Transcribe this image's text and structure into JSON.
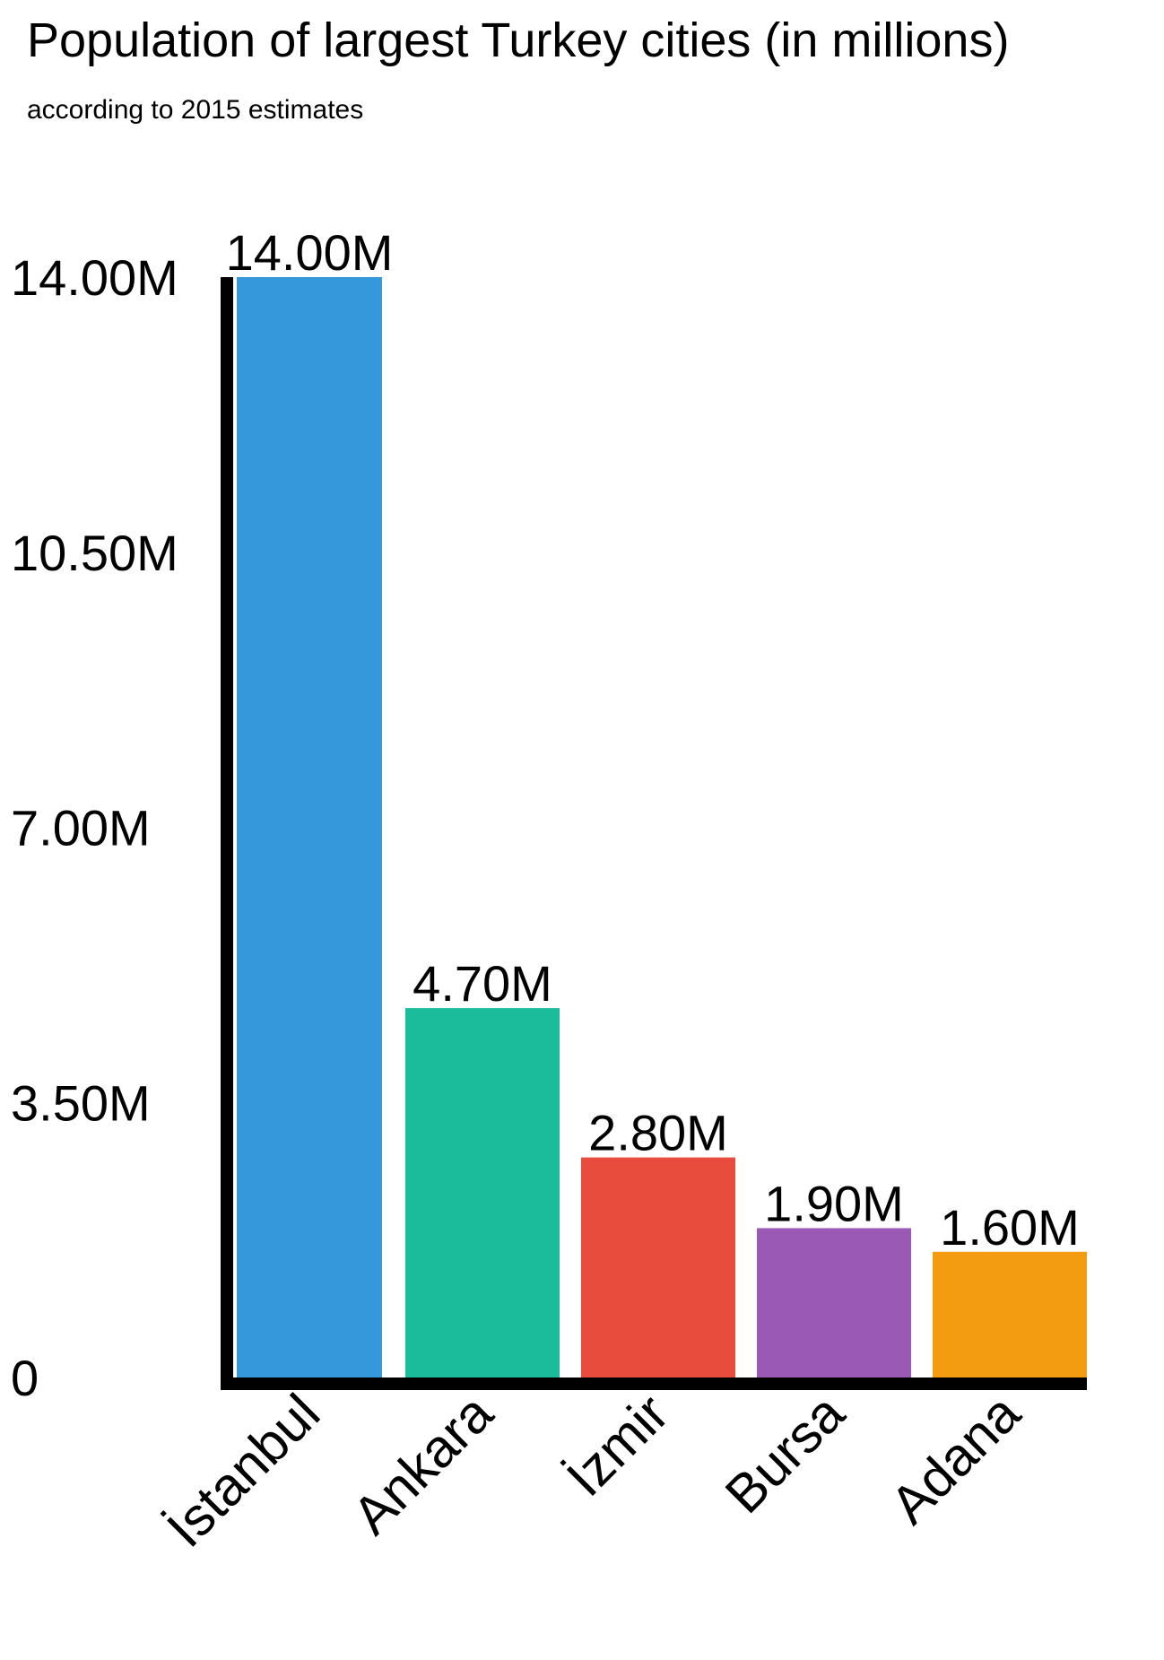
{
  "chart_data": {
    "type": "bar",
    "title": "Population of largest Turkey cities (in millions)",
    "subtitle": "according to 2015 estimates",
    "categories": [
      "İstanbul",
      "Ankara",
      "İzmir",
      "Bursa",
      "Adana"
    ],
    "values": [
      14.0,
      4.7,
      2.8,
      1.9,
      1.6
    ],
    "value_labels": [
      "14.00M",
      "4.70M",
      "2.80M",
      "1.90M",
      "1.60M"
    ],
    "colors": [
      "#3498db",
      "#1abc9c",
      "#e74c3c",
      "#9b59b6",
      "#f39c12"
    ],
    "yticks": [
      0,
      3.5,
      7.0,
      10.5,
      14.0
    ],
    "ytick_labels": [
      "0",
      "3.50M",
      "7.00M",
      "10.50M",
      "14.00M"
    ],
    "ylim": [
      0,
      14.0
    ],
    "grid": false,
    "legend": "none",
    "xlabel": "",
    "ylabel": ""
  }
}
